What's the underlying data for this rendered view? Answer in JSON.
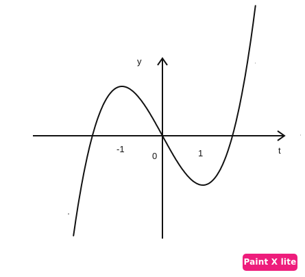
{
  "plot": {
    "curve": "y = x^3 - 3x",
    "x_domain": [
      -2.2,
      2.3
    ],
    "axis_labels": {
      "x": "t",
      "y": "y"
    },
    "tick_labels": {
      "minus_one": "-1",
      "origin": "0",
      "one": "1"
    },
    "colors": {
      "stroke": "#111111"
    }
  },
  "watermark": {
    "text": "Paint X lite",
    "background": "#ee1d7c",
    "text_color": "#ffffff"
  }
}
